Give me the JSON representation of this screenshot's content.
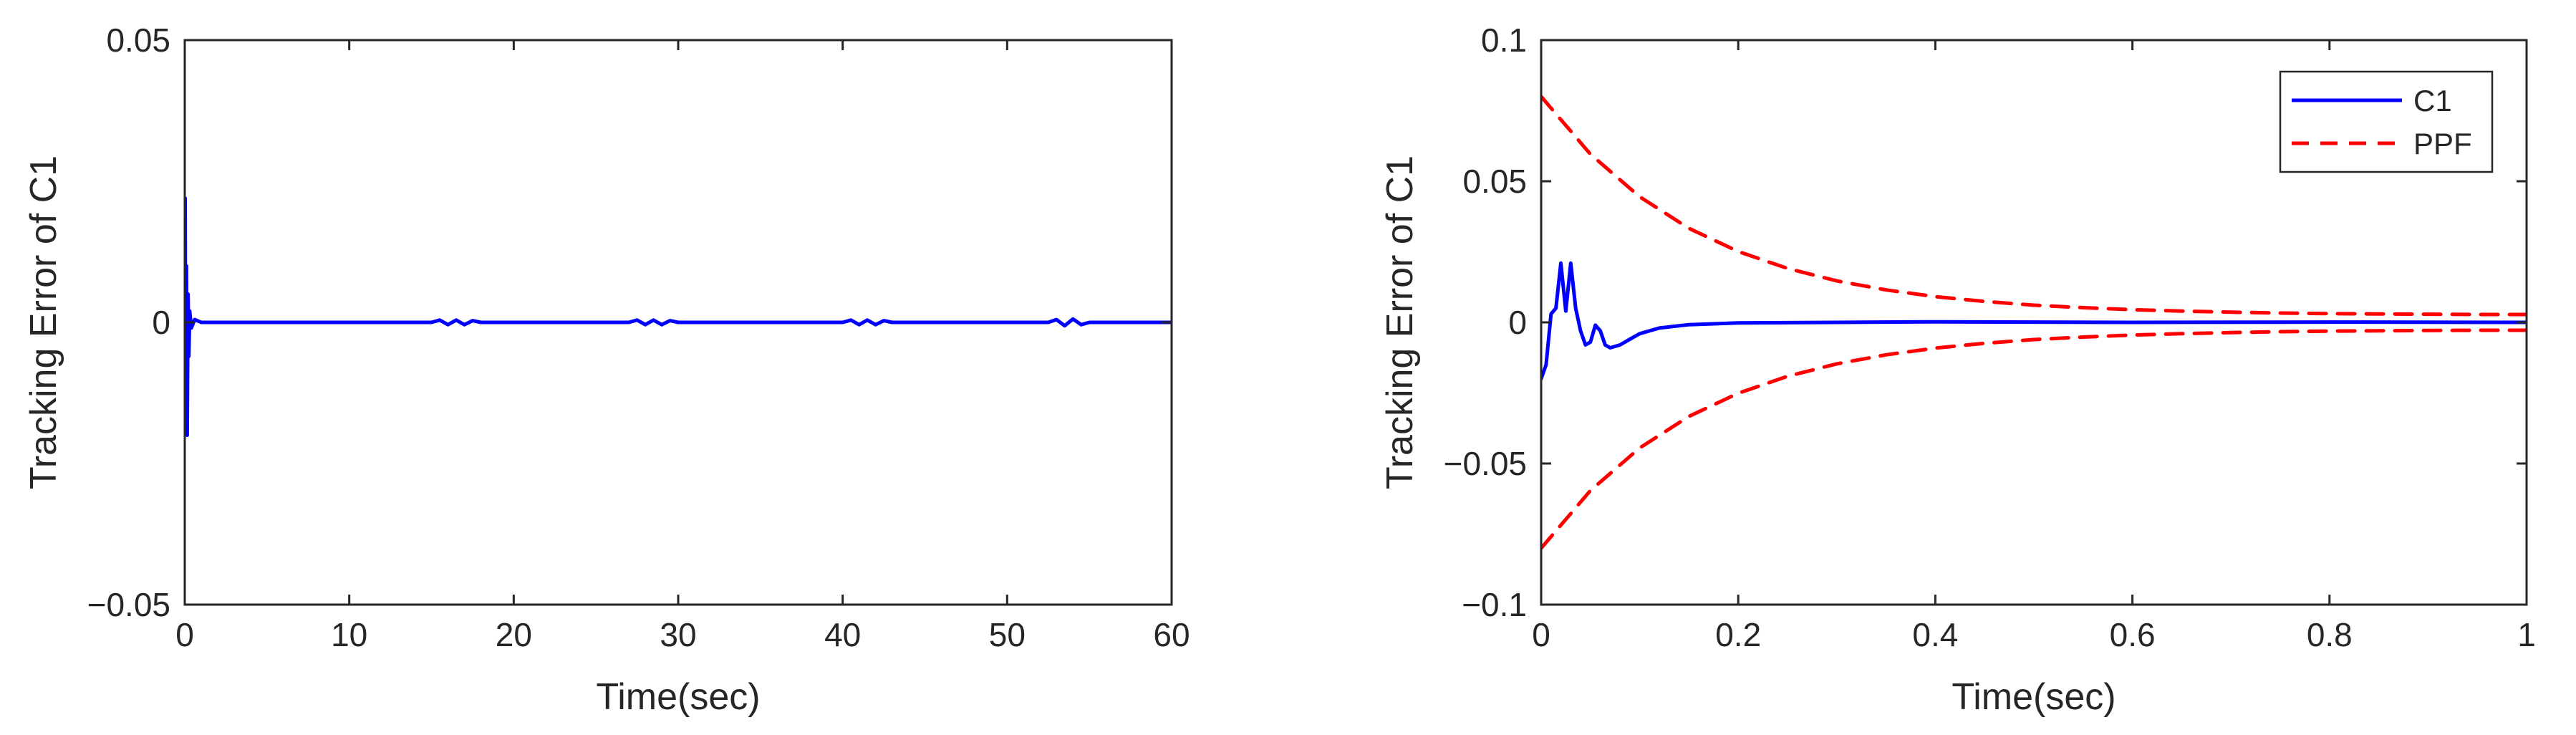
{
  "chart_data": [
    {
      "type": "line",
      "title": "",
      "xlabel": "Time(sec)",
      "ylabel": "Tracking Error of C1",
      "xlim": [
        0,
        60
      ],
      "ylim": [
        -0.05,
        0.05
      ],
      "xticks": [
        0,
        10,
        20,
        30,
        40,
        50,
        60
      ],
      "xtick_labels": [
        "0",
        "10",
        "20",
        "30",
        "40",
        "50",
        "60"
      ],
      "yticks": [
        -0.05,
        0,
        0.05
      ],
      "ytick_labels": [
        "−0.05",
        "0",
        "0.05"
      ],
      "grid": false,
      "legend": null,
      "series": [
        {
          "color": "#0000ff",
          "style": "solid",
          "x": [
            0,
            0.02,
            0.05,
            0.1,
            0.15,
            0.2,
            0.25,
            0.3,
            0.4,
            0.6,
            1,
            15,
            15.5,
            16,
            16.5,
            17,
            17.5,
            18,
            27,
            27.5,
            28,
            28.5,
            29,
            29.5,
            30,
            40,
            40.5,
            41,
            41.5,
            42,
            42.5,
            43,
            52.5,
            53,
            53.5,
            54,
            54.5,
            55,
            60
          ],
          "y": [
            -0.02,
            0.022,
            -0.01,
            0.01,
            -0.02,
            0.005,
            -0.006,
            0.002,
            -0.001,
            0.0005,
            0,
            0,
            0.0004,
            -0.0004,
            0.0004,
            -0.0004,
            0.0003,
            0,
            0,
            0.0004,
            -0.0004,
            0.0004,
            -0.0004,
            0.0003,
            0,
            0,
            0.0004,
            -0.0004,
            0.0004,
            -0.0004,
            0.0003,
            0,
            0,
            0.0005,
            -0.0006,
            0.0006,
            -0.0004,
            0,
            0
          ]
        }
      ]
    },
    {
      "type": "line",
      "title": "",
      "xlabel": "Time(sec)",
      "ylabel": "Tracking Error of C1",
      "xlim": [
        0,
        1
      ],
      "ylim": [
        -0.1,
        0.1
      ],
      "xticks": [
        0,
        0.2,
        0.4,
        0.6,
        0.8,
        1
      ],
      "xtick_labels": [
        "0",
        "0.2",
        "0.4",
        "0.6",
        "0.8",
        "1"
      ],
      "yticks": [
        -0.1,
        -0.05,
        0,
        0.05,
        0.1
      ],
      "ytick_labels": [
        "−0.1",
        "−0.05",
        "0",
        "0.05",
        "0.1"
      ],
      "grid": false,
      "legend": "top-right",
      "series": [
        {
          "name": "C1",
          "color": "#0000ff",
          "style": "solid",
          "x": [
            0,
            0.005,
            0.01,
            0.015,
            0.02,
            0.025,
            0.03,
            0.035,
            0.04,
            0.045,
            0.05,
            0.055,
            0.06,
            0.065,
            0.07,
            0.08,
            0.09,
            0.1,
            0.12,
            0.15,
            0.2,
            0.3,
            0.4,
            0.6,
            0.8,
            1.0
          ],
          "y": [
            -0.02,
            -0.015,
            0.003,
            0.005,
            0.021,
            0.004,
            0.021,
            0.005,
            -0.003,
            -0.008,
            -0.007,
            -0.001,
            -0.003,
            -0.008,
            -0.009,
            -0.008,
            -0.006,
            -0.004,
            -0.002,
            -0.0008,
            -0.0002,
            0,
            0.0002,
            0,
            0.0001,
            0
          ]
        },
        {
          "name": "PPF",
          "color": "#ff0000",
          "style": "dashed",
          "x": [
            0,
            0.05,
            0.1,
            0.15,
            0.2,
            0.25,
            0.3,
            0.35,
            0.4,
            0.45,
            0.5,
            0.55,
            0.6,
            0.65,
            0.7,
            0.75,
            0.8,
            0.85,
            0.9,
            0.95,
            1.0
          ],
          "y": [
            0.08,
            0.0596,
            0.0445,
            0.0333,
            0.0251,
            0.0191,
            0.0147,
            0.0115,
            0.0091,
            0.0074,
            0.0061,
            0.0052,
            0.0045,
            0.004,
            0.0036,
            0.0033,
            0.0031,
            0.003,
            0.0029,
            0.0028,
            0.0028
          ]
        },
        {
          "color": "#ff0000",
          "style": "dashed",
          "x": [
            0,
            0.05,
            0.1,
            0.15,
            0.2,
            0.25,
            0.3,
            0.35,
            0.4,
            0.45,
            0.5,
            0.55,
            0.6,
            0.65,
            0.7,
            0.75,
            0.8,
            0.85,
            0.9,
            0.95,
            1.0
          ],
          "y": [
            -0.08,
            -0.0596,
            -0.0445,
            -0.0333,
            -0.0251,
            -0.0191,
            -0.0147,
            -0.0115,
            -0.0091,
            -0.0074,
            -0.0061,
            -0.0052,
            -0.0045,
            -0.004,
            -0.0036,
            -0.0033,
            -0.0031,
            -0.003,
            -0.0029,
            -0.0028,
            -0.0028
          ]
        }
      ]
    }
  ]
}
